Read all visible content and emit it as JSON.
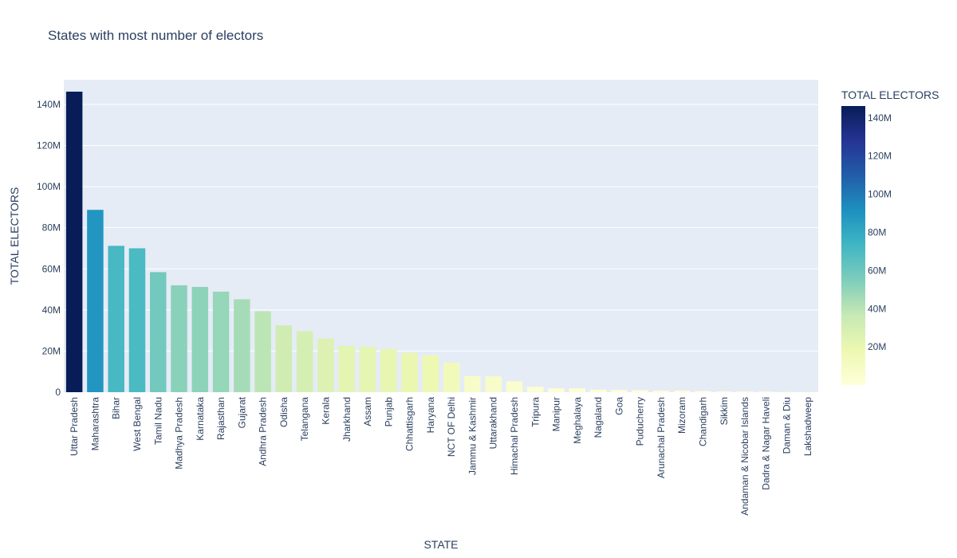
{
  "chart_data": {
    "type": "bar",
    "title": "States with most number of electors",
    "xlabel": "STATE",
    "ylabel": "TOTAL ELECTORS",
    "ylim": [
      0,
      152000000
    ],
    "y_ticks": [
      0,
      20000000,
      40000000,
      60000000,
      80000000,
      100000000,
      120000000,
      140000000
    ],
    "y_tick_labels": [
      "0",
      "20M",
      "40M",
      "60M",
      "80M",
      "100M",
      "120M",
      "140M"
    ],
    "grid": true,
    "colorscale": "YlGnBu",
    "colorbar": {
      "title": "TOTAL ELECTORS",
      "ticks": [
        20000000,
        40000000,
        60000000,
        80000000,
        100000000,
        120000000,
        140000000
      ],
      "tick_labels": [
        "20M",
        "40M",
        "60M",
        "80M",
        "100M",
        "120M",
        "140M"
      ],
      "colors": [
        "#ffffd9",
        "#edf8b1",
        "#c7e9b4",
        "#7fcdbb",
        "#41b6c4",
        "#1d91c0",
        "#225ea8",
        "#253494",
        "#081d58"
      ]
    },
    "categories": [
      "Uttar Pradesh",
      "Maharashtra",
      "Bihar",
      "West Bengal",
      "Tamil Nadu",
      "Madhya Pradesh",
      "Karnataka",
      "Rajasthan",
      "Gujarat",
      "Andhra Pradesh",
      "Odisha",
      "Telangana",
      "Kerala",
      "Jharkhand",
      "Assam",
      "Punjab",
      "Chhattisgarh",
      "Haryana",
      "NCT OF Delhi",
      "Jammu & Kashmir",
      "Uttarakhand",
      "Himachal Pradesh",
      "Tripura",
      "Manipur",
      "Meghalaya",
      "Nagaland",
      "Goa",
      "Puducherry",
      "Arunachal Pradesh",
      "Mizoram",
      "Chandigarh",
      "Sikkim",
      "Andaman & Nicobar Islands",
      "Dadra & Nagar Haveli",
      "Daman & Diu",
      "Lakshadweep"
    ],
    "values": [
      146200000,
      88700000,
      71200000,
      70000000,
      58400000,
      52000000,
      51200000,
      48900000,
      45200000,
      39400000,
      32500000,
      29700000,
      26100000,
      22500000,
      22100000,
      21000000,
      19100000,
      18000000,
      14300000,
      7800000,
      7700000,
      5300000,
      2600000,
      1900000,
      1900000,
      1200000,
      1100000,
      1000000,
      800000,
      800000,
      600000,
      400000,
      300000,
      300000,
      120000,
      50000
    ]
  }
}
